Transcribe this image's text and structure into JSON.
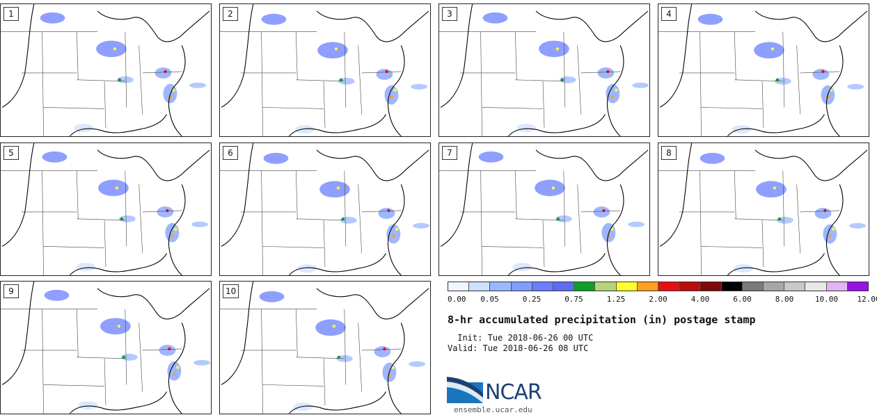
{
  "panels": [
    {
      "label": "1"
    },
    {
      "label": "2"
    },
    {
      "label": "3"
    },
    {
      "label": "4"
    },
    {
      "label": "5"
    },
    {
      "label": "6"
    },
    {
      "label": "7"
    },
    {
      "label": "8"
    },
    {
      "label": "9"
    },
    {
      "label": "10"
    }
  ],
  "colorbar": {
    "colors": [
      "#f0f6ff",
      "#cfe0ff",
      "#9ab8ff",
      "#7f9eff",
      "#6a7fff",
      "#5f6bf0",
      "#0f9e2a",
      "#b5d37a",
      "#ffff2e",
      "#ffa01e",
      "#e60f0f",
      "#b80d0d",
      "#7d0909",
      "#000000",
      "#7a7a7a",
      "#a6a6a6",
      "#c8c8c8",
      "#e8e8e8",
      "#e4b5f5",
      "#9514e3"
    ],
    "tick_labels": [
      "0.00",
      "0.05",
      "0.25",
      "0.75",
      "1.25",
      "2.00",
      "4.00",
      "6.00",
      "8.00",
      "10.00",
      "12.00"
    ]
  },
  "title": "8-hr accumulated precipitation (in) postage stamp",
  "init": " Init: Tue 2018-06-26 00 UTC",
  "valid": "Valid: Tue 2018-06-26 08 UTC",
  "logo": {
    "text": "NCAR",
    "site": "ensemble.ucar.edu"
  }
}
